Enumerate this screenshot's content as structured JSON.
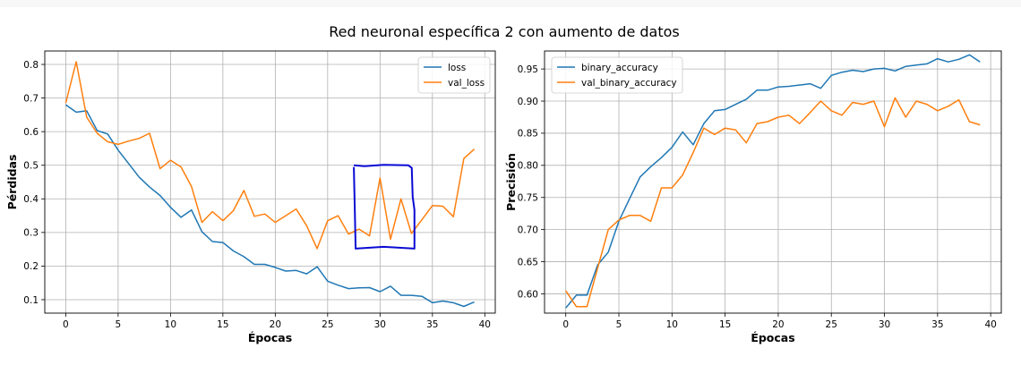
{
  "figure": {
    "suptitle": "Red neuronal específica 2 con aumento de datos"
  },
  "colors": {
    "series_blue": "#1f77b4",
    "series_orange": "#ff7f0e",
    "annotation_box": "#0a0ad4",
    "grid": "#b0b0b0"
  },
  "chart_data": [
    {
      "type": "line",
      "title": "",
      "xlabel": "Épocas",
      "ylabel": "Pérdidas",
      "xlim": [
        -2,
        41
      ],
      "ylim": [
        0.06,
        0.84
      ],
      "xticks": [
        0,
        5,
        10,
        15,
        20,
        25,
        30,
        35,
        40
      ],
      "yticks": [
        0.1,
        0.2,
        0.3,
        0.4,
        0.5,
        0.6,
        0.7,
        0.8
      ],
      "grid": true,
      "legend_position": "top-right",
      "x": [
        0,
        1,
        2,
        3,
        4,
        5,
        6,
        7,
        8,
        9,
        10,
        11,
        12,
        13,
        14,
        15,
        16,
        17,
        18,
        19,
        20,
        21,
        22,
        23,
        24,
        25,
        26,
        27,
        28,
        29,
        30,
        31,
        32,
        33,
        34,
        35,
        36,
        37,
        38,
        39
      ],
      "series": [
        {
          "name": "loss",
          "color": "#1f77b4",
          "values": [
            0.68,
            0.658,
            0.662,
            0.603,
            0.593,
            0.545,
            0.505,
            0.465,
            0.435,
            0.41,
            0.375,
            0.345,
            0.367,
            0.302,
            0.273,
            0.27,
            0.245,
            0.228,
            0.205,
            0.205,
            0.196,
            0.185,
            0.187,
            0.177,
            0.198,
            0.155,
            0.143,
            0.133,
            0.135,
            0.136,
            0.124,
            0.14,
            0.113,
            0.113,
            0.11,
            0.091,
            0.096,
            0.091,
            0.08,
            0.093
          ]
        },
        {
          "name": "val_loss",
          "color": "#ff7f0e",
          "values": [
            0.685,
            0.808,
            0.643,
            0.595,
            0.57,
            0.562,
            0.572,
            0.58,
            0.595,
            0.49,
            0.515,
            0.495,
            0.437,
            0.33,
            0.362,
            0.335,
            0.365,
            0.425,
            0.348,
            0.355,
            0.33,
            0.35,
            0.37,
            0.32,
            0.252,
            0.335,
            0.35,
            0.295,
            0.31,
            0.29,
            0.462,
            0.28,
            0.4,
            0.297,
            0.338,
            0.38,
            0.378,
            0.347,
            0.52,
            0.548
          ]
        }
      ],
      "annotation": {
        "type": "hand-drawn rectangle",
        "color": "#0a0ad4",
        "x_range": [
          27.5,
          33.2
        ],
        "y_range": [
          0.252,
          0.5
        ]
      }
    },
    {
      "type": "line",
      "title": "",
      "xlabel": "Épocas",
      "ylabel": "Precisión",
      "xlim": [
        -2,
        41
      ],
      "ylim": [
        0.57,
        0.978
      ],
      "xticks": [
        0,
        5,
        10,
        15,
        20,
        25,
        30,
        35,
        40
      ],
      "yticks": [
        0.6,
        0.65,
        0.7,
        0.75,
        0.8,
        0.85,
        0.9,
        0.95
      ],
      "grid": true,
      "legend_position": "top-left",
      "x": [
        0,
        1,
        2,
        3,
        4,
        5,
        6,
        7,
        8,
        9,
        10,
        11,
        12,
        13,
        14,
        15,
        16,
        17,
        18,
        19,
        20,
        21,
        22,
        23,
        24,
        25,
        26,
        27,
        28,
        29,
        30,
        31,
        32,
        33,
        34,
        35,
        36,
        37,
        38,
        39
      ],
      "series": [
        {
          "name": "binary_accuracy",
          "color": "#1f77b4",
          "values": [
            0.578,
            0.598,
            0.598,
            0.645,
            0.665,
            0.713,
            0.748,
            0.782,
            0.798,
            0.812,
            0.828,
            0.852,
            0.832,
            0.865,
            0.885,
            0.887,
            0.895,
            0.903,
            0.917,
            0.917,
            0.922,
            0.923,
            0.925,
            0.927,
            0.92,
            0.94,
            0.945,
            0.948,
            0.946,
            0.95,
            0.951,
            0.947,
            0.954,
            0.956,
            0.958,
            0.966,
            0.961,
            0.965,
            0.972,
            0.961
          ]
        },
        {
          "name": "val_binary_accuracy",
          "color": "#ff7f0e",
          "values": [
            0.605,
            0.58,
            0.58,
            0.64,
            0.7,
            0.715,
            0.722,
            0.722,
            0.713,
            0.765,
            0.765,
            0.785,
            0.82,
            0.858,
            0.848,
            0.858,
            0.855,
            0.835,
            0.865,
            0.868,
            0.875,
            0.878,
            0.865,
            0.882,
            0.9,
            0.885,
            0.878,
            0.898,
            0.895,
            0.9,
            0.86,
            0.905,
            0.875,
            0.9,
            0.895,
            0.885,
            0.892,
            0.902,
            0.868,
            0.863
          ]
        }
      ]
    }
  ]
}
